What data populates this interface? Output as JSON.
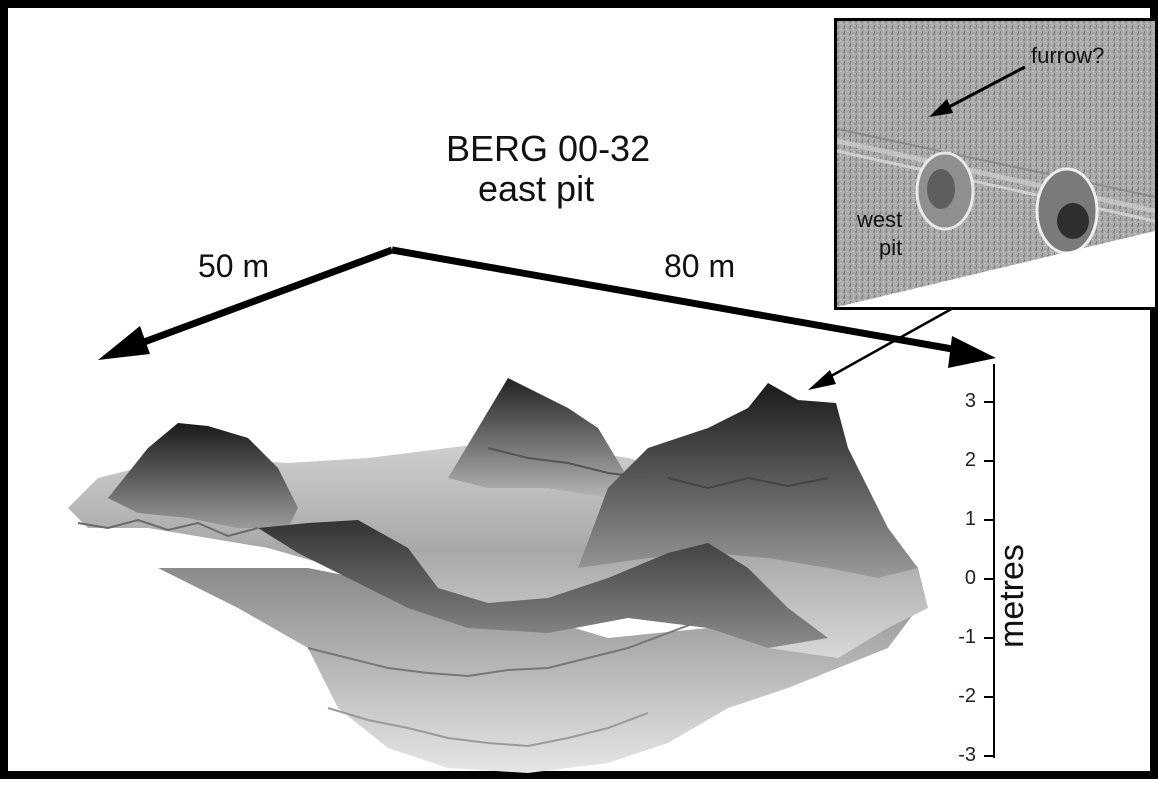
{
  "title": {
    "line1": "BERG 00-32",
    "line2": "east pit"
  },
  "distances": {
    "left": "50 m",
    "right": "80 m"
  },
  "inset": {
    "furrow_label": "furrow?",
    "west_pit_line1": "west",
    "west_pit_line2": "pit"
  },
  "axis": {
    "title": "metres",
    "ticks": [
      {
        "value": 3,
        "label": "3"
      },
      {
        "value": 2,
        "label": "2"
      },
      {
        "value": 1,
        "label": "1"
      },
      {
        "value": 0,
        "label": "0"
      },
      {
        "value": -1,
        "label": "-1"
      },
      {
        "value": -2,
        "label": "-2"
      },
      {
        "value": -3,
        "label": "-3"
      }
    ]
  }
}
